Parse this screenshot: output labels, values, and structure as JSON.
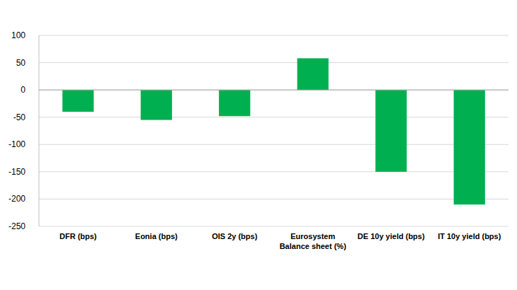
{
  "chart_data": {
    "type": "bar",
    "categories": [
      "DFR (bps)",
      "Eonia (bps)",
      "OIS 2y (bps)",
      "Eurosystem Balance sheet (%)",
      "DE 10y yield (bps)",
      "IT 10y yield (bps)"
    ],
    "values": [
      -40,
      -55,
      -48,
      58,
      -150,
      -210
    ],
    "color": "#00b050",
    "ylim": [
      -250,
      100
    ],
    "yticks": [
      -250,
      -200,
      -150,
      -100,
      -50,
      0,
      50,
      100
    ],
    "grid": true
  }
}
